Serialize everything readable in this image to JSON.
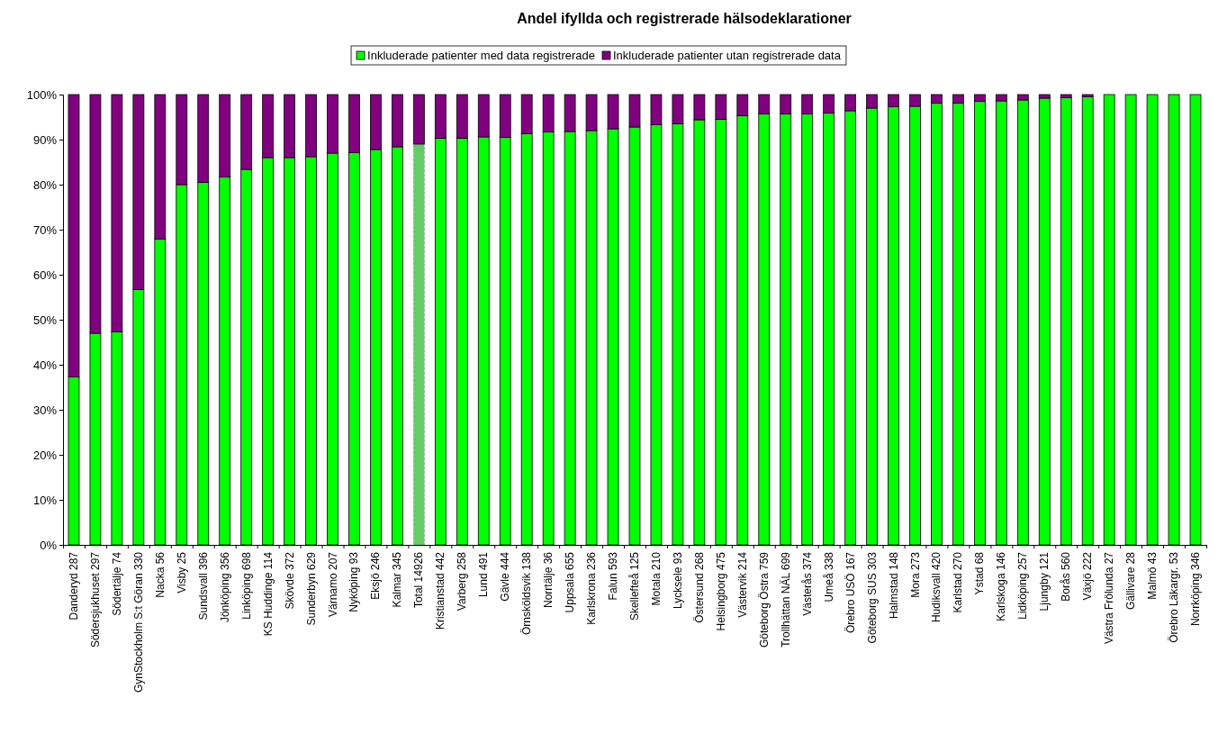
{
  "chart_data": {
    "type": "bar",
    "stacked": true,
    "title": "Andel ifyllda och registrerade hälsodeklarationer",
    "legend": "top",
    "grid": false,
    "categories": [
      "Danderyd 287",
      "Södersjukhuset 297",
      "Södertälje 74",
      "GynStockholm S:t Göran 330",
      "Nacka 56",
      "Visby 25",
      "Sundsvall 396",
      "Jönköping 356",
      "Linköping 698",
      "KS Huddinge 114",
      "Skövde 372",
      "Sunderbyn 629",
      "Värnamo 207",
      "Nyköping 93",
      "Eksjö 246",
      "Kalmar 345",
      "Total 14926",
      "Kristianstad 442",
      "Varberg 258",
      "Lund 491",
      "Gävle 444",
      "Örnsköldsvik 138",
      "Norrtälje 36",
      "Uppsala 655",
      "Karlskrona 236",
      "Falun 593",
      "Skellefteå 125",
      "Motala 210",
      "Lycksele 93",
      "Östersund 268",
      "Helsingborg 475",
      "Västervik 214",
      "Göteborg Östra 759",
      "Trollhättan NÄL 699",
      "Västerås 374",
      "Umeå 338",
      "Örebro USÖ 167",
      "Göteborg SUS 303",
      "Halmstad 148",
      "Mora 273",
      "Hudiksvall 420",
      "Karlstad 270",
      "Ystad 68",
      "Karlskoga 146",
      "Lidköping 257",
      "Ljungby 121",
      "Borås 560",
      "Växjö 222",
      "Västra Frölunda 27",
      "Gällivare 28",
      "Malmö 43",
      "Örebro Läkargr. 53",
      "Norrköping 346"
    ],
    "ylim": [
      0,
      100
    ],
    "yticks": [
      {
        "value": 0,
        "label": "0%"
      },
      {
        "value": 10,
        "label": "10%"
      },
      {
        "value": 20,
        "label": "20%"
      },
      {
        "value": 30,
        "label": "30%"
      },
      {
        "value": 40,
        "label": "40%"
      },
      {
        "value": 50,
        "label": "50%"
      },
      {
        "value": 60,
        "label": "60%"
      },
      {
        "value": 70,
        "label": "70%"
      },
      {
        "value": 80,
        "label": "80%"
      },
      {
        "value": 90,
        "label": "90%"
      },
      {
        "value": 100,
        "label": "100%"
      }
    ],
    "series": [
      {
        "name": "Inkluderade patienter med data registrerade",
        "color": "#00ff00",
        "colors": [
          "#00ff00",
          "#00ff00",
          "#00ff00",
          "#00ff00",
          "#00ff00",
          "#00ff00",
          "#00ff00",
          "#00ff00",
          "#00ff00",
          "#00ff00",
          "#00ff00",
          "#00ff00",
          "#00ff00",
          "#00ff00",
          "#00ff00",
          "#00ff00",
          "#66cc66",
          "#00ff00",
          "#00ff00",
          "#00ff00",
          "#00ff00",
          "#00ff00",
          "#00ff00",
          "#00ff00",
          "#00ff00",
          "#00ff00",
          "#00ff00",
          "#00ff00",
          "#00ff00",
          "#00ff00",
          "#00ff00",
          "#00ff00",
          "#00ff00",
          "#00ff00",
          "#00ff00",
          "#00ff00",
          "#00ff00",
          "#00ff00",
          "#00ff00",
          "#00ff00",
          "#00ff00",
          "#00ff00",
          "#00ff00",
          "#00ff00",
          "#00ff00",
          "#00ff00",
          "#00ff00",
          "#00ff00",
          "#00ff00",
          "#00ff00",
          "#00ff00",
          "#00ff00",
          "#00ff00"
        ],
        "values": [
          37.3,
          47,
          47.3,
          56.7,
          67.9,
          80,
          80.5,
          81.7,
          83.4,
          86,
          86,
          86.2,
          87,
          87.1,
          87.8,
          88.4,
          89,
          90.3,
          90.3,
          90.6,
          90.5,
          91.3,
          91.7,
          91.8,
          92,
          92.4,
          92.8,
          93.3,
          93.5,
          94.4,
          94.5,
          95.3,
          95.7,
          95.7,
          95.7,
          95.9,
          96.4,
          97,
          97.3,
          97.4,
          98.1,
          98.1,
          98.5,
          98.6,
          98.8,
          99.2,
          99.3,
          99.5,
          100,
          100,
          100,
          100,
          100
        ]
      },
      {
        "name": "Inkluderade patienter utan registrerade data",
        "color": "#800080",
        "values": [
          62.7,
          53,
          52.7,
          43.3,
          32.1,
          20,
          19.5,
          18.3,
          16.6,
          14,
          14,
          13.8,
          13,
          12.9,
          12.2,
          11.6,
          11,
          9.7,
          9.7,
          9.4,
          9.5,
          8.7,
          8.3,
          8.2,
          8,
          7.6,
          7.2,
          6.7,
          6.5,
          5.6,
          5.5,
          4.7,
          4.3,
          4.3,
          4.3,
          4.1,
          3.6,
          3,
          2.7,
          2.6,
          1.9,
          1.9,
          1.5,
          1.4,
          1.2,
          0.8,
          0.7,
          0.5,
          0,
          0,
          0,
          0,
          0
        ]
      }
    ]
  }
}
